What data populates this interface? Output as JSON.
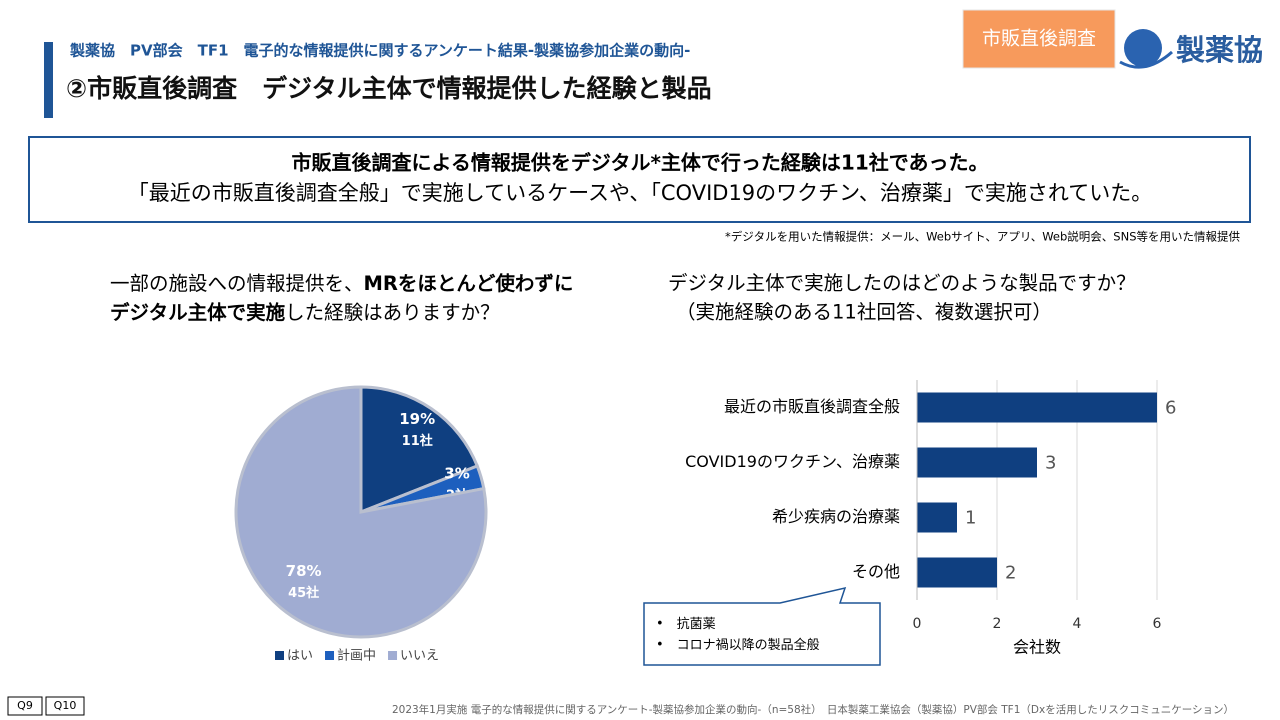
{
  "header": {
    "subtitle": "製薬協　PV部会　TF1　電子的な情報提供に関するアンケート結果-製薬協参加企業の動向-",
    "title": "②市販直後調査　デジタル主体で情報提供した経験と製品",
    "badge": "市販直後調査",
    "logo": "製薬協"
  },
  "summary": {
    "line1": "市販直後調査による情報提供をデジタル*主体で行った経験は11社であった。",
    "line2": "「最近の市販直後調査全般」で実施しているケースや、「COVID19のワクチン、治療薬」で実施されていた。",
    "note": "*デジタルを用いた情報提供：メール、Webサイト、アプリ、Web説明会、SNS等を用いた情報提供"
  },
  "question_left": [
    [
      "一部の施設への情報提供を、",
      "MRをほとんど使わずに"
    ],
    [
      "デジタル主体で実施",
      "した経験はありますか？"
    ]
  ],
  "question_right": [
    "デジタル主体で実施したのはどのような製品ですか？",
    "（実施経験のある11社回答、複数選択可）"
  ],
  "chart_data": [
    {
      "type": "pie",
      "categories": [
        "はい",
        "計画中",
        "いいえ"
      ],
      "values": [
        19,
        3,
        78
      ],
      "value_labels": [
        "19%",
        "3%",
        "78%"
      ],
      "counts": [
        11,
        2,
        45
      ],
      "count_labels": [
        "11社",
        "2社",
        "45社"
      ],
      "colors": [
        "#0f3f80",
        "#1d5fbe",
        "#a0acd2"
      ],
      "legend": "bottom"
    },
    {
      "type": "barh",
      "categories": [
        "最近の市販直後調査全般",
        "COVID19のワクチン、治療薬",
        "希少疾病の治療薬",
        "その他"
      ],
      "values": [
        6,
        3,
        1,
        2
      ],
      "color": "#0f3f80",
      "xlim": [
        0,
        6
      ],
      "xticks": [
        0,
        2,
        4,
        6
      ],
      "xlabel": "会社数",
      "grid": true
    }
  ],
  "callout": [
    "抗菌薬",
    "コロナ禍以降の製品全般"
  ],
  "footer": {
    "tabs": [
      "Q9",
      "Q10"
    ],
    "text": "2023年1月実施 電子的な情報提供に関するアンケート-製薬協参加企業の動向-（n=58社）　日本製薬工業協会（製薬協）PV部会 TF1（Dxを活用したリスクコミュニケーション）"
  }
}
